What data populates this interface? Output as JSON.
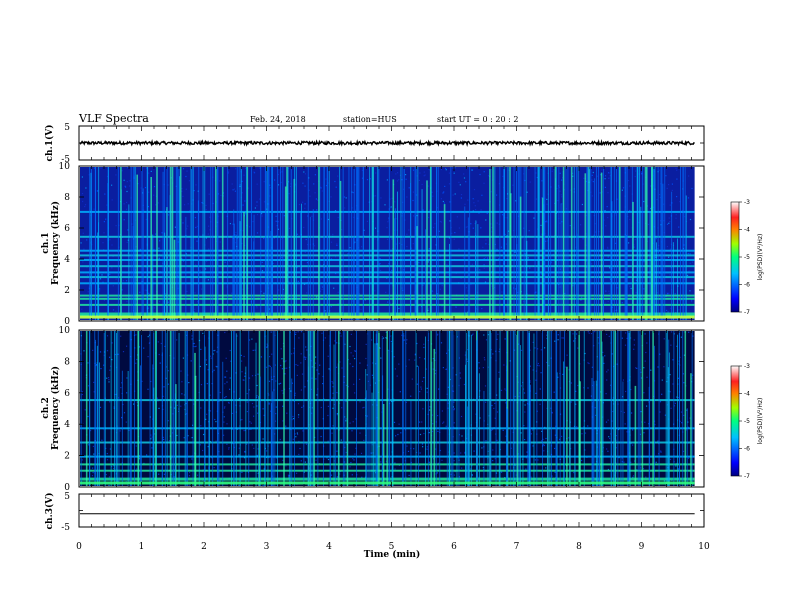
{
  "header": {
    "title": "VLF Spectra",
    "date": "Feb. 24, 2018",
    "station": "station=HUS",
    "start": "start UT =  0 : 20 : 2"
  },
  "chart_data": [
    {
      "type": "line",
      "name": "ch1-waveform",
      "ylabel": "ch.1(V)",
      "ylim": [
        -5,
        5
      ],
      "yticks": [
        "5",
        "-5"
      ],
      "xlim": [
        0,
        9.85
      ],
      "level": 0,
      "color": "#000000"
    },
    {
      "type": "heatmap",
      "name": "ch1-spectrogram",
      "ylabel_top": "ch.1",
      "ylabel": "Frequency (kHz)",
      "ylim": [
        0,
        10
      ],
      "yticks": [
        "0",
        "2",
        "4",
        "6",
        "8",
        "10"
      ],
      "xlim": [
        0,
        9.85
      ],
      "colorbar": {
        "label": "log(PSD)(V²/Hz)",
        "range": [
          -7,
          -3
        ],
        "ticks": [
          "-3",
          "-4",
          "-5",
          "-6",
          "-7"
        ]
      },
      "bands_khz": [
        0.4,
        0.55,
        1.1,
        1.5,
        1.7,
        2.5,
        2.9,
        3.2,
        3.6,
        4.0,
        4.3,
        4.6,
        5.5,
        7.1
      ]
    },
    {
      "type": "heatmap",
      "name": "ch2-spectrogram",
      "ylabel_top": "ch.2",
      "ylabel": "Frequency (kHz)",
      "ylim": [
        0,
        10
      ],
      "yticks": [
        "0",
        "2",
        "4",
        "6",
        "8",
        "10"
      ],
      "xlim": [
        0,
        9.85
      ],
      "colorbar": {
        "label": "log(PSD)(V²/Hz)",
        "range": [
          -7,
          -3
        ],
        "ticks": [
          "-3",
          "-4",
          "-5",
          "-6",
          "-7"
        ]
      },
      "bands_khz": [
        0.6,
        1.1,
        1.5,
        2.0,
        2.9,
        3.8,
        5.6
      ]
    },
    {
      "type": "line",
      "name": "ch3-waveform",
      "ylabel": "ch.3(V)",
      "ylim": [
        -5,
        5
      ],
      "yticks": [
        "5",
        "-5"
      ],
      "xlim": [
        0,
        9.85
      ],
      "level": -1,
      "color": "#000000"
    }
  ],
  "xaxis": {
    "label": "Time (min)",
    "ticks": [
      "0",
      "1",
      "2",
      "3",
      "4",
      "5",
      "6",
      "7",
      "8",
      "9",
      "10"
    ],
    "range": [
      0,
      10
    ]
  }
}
